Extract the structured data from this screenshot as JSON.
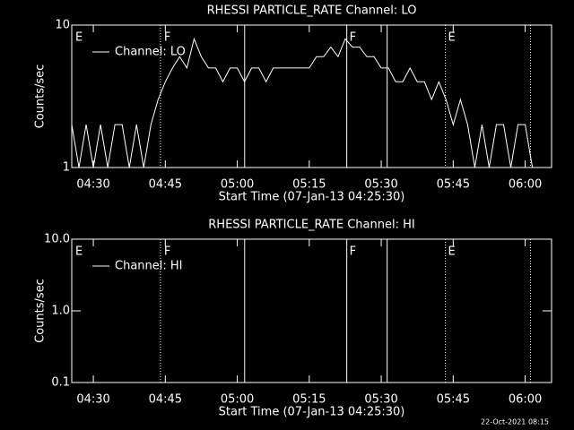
{
  "chart_data": [
    {
      "type": "line",
      "title": "RHESSI PARTICLE_RATE Channel: LO",
      "xlabel": "Start Time (07-Jan-13 04:25:30)",
      "ylabel": "Counts/sec",
      "log_y": true,
      "ylim": [
        1,
        10
      ],
      "yticks": [
        1,
        10
      ],
      "xlim": [
        0,
        6000
      ],
      "xticks": [
        {
          "value": 270,
          "label": "04:30"
        },
        {
          "value": 1170,
          "label": "04:45"
        },
        {
          "value": 2070,
          "label": "05:00"
        },
        {
          "value": 2970,
          "label": "05:15"
        },
        {
          "value": 3870,
          "label": "05:30"
        },
        {
          "value": 4770,
          "label": "05:45"
        },
        {
          "value": 5670,
          "label": "06:00"
        }
      ],
      "x": [
        0,
        90,
        180,
        270,
        360,
        450,
        540,
        630,
        720,
        810,
        900,
        990,
        1080,
        1170,
        1260,
        1350,
        1440,
        1530,
        1620,
        1710,
        1800,
        1890,
        1980,
        2070,
        2160,
        2250,
        2340,
        2430,
        2520,
        2610,
        2700,
        2790,
        2880,
        2970,
        3060,
        3150,
        3240,
        3330,
        3420,
        3510,
        3600,
        3690,
        3780,
        3870,
        3960,
        4050,
        4140,
        4230,
        4320,
        4410,
        4500,
        4590,
        4680,
        4770,
        4860,
        4950,
        5040,
        5130,
        5220,
        5310,
        5400,
        5490,
        5580,
        5670,
        5760
      ],
      "series": [
        {
          "name": "Channel: LO",
          "color": "#ffffff",
          "values": [
            2,
            1,
            2,
            1,
            2,
            1,
            2,
            2,
            1,
            2,
            1,
            2,
            3,
            4,
            5,
            6,
            5,
            8,
            6,
            5,
            5,
            4,
            5,
            5,
            4,
            5,
            5,
            4,
            5,
            5,
            5,
            5,
            5,
            5,
            6,
            6,
            7,
            6,
            8,
            7,
            7,
            6,
            6,
            5,
            5,
            4,
            4,
            5,
            4,
            4,
            3,
            4,
            3,
            2,
            3,
            2,
            1,
            2,
            1,
            2,
            2,
            1,
            2,
            2,
            1
          ]
        }
      ],
      "legend": "upper left",
      "vlines": [
        {
          "x": 1109,
          "style": "dotted"
        },
        {
          "x": 2162,
          "style": "solid"
        },
        {
          "x": 3439,
          "style": "solid"
        },
        {
          "x": 3944,
          "style": "solid"
        },
        {
          "x": 4672,
          "style": "dotted"
        },
        {
          "x": 5736,
          "style": "dotted"
        }
      ],
      "annotations": [
        {
          "text": "E",
          "x": 45
        },
        {
          "text": "F",
          "x": 1154
        },
        {
          "text": "F",
          "x": 3473
        },
        {
          "text": "E",
          "x": 4705
        }
      ]
    },
    {
      "type": "line",
      "title": "RHESSI PARTICLE_RATE Channel: HI",
      "xlabel": "Start Time (07-Jan-13 04:25:30)",
      "ylabel": "Counts/sec",
      "log_y": true,
      "ylim": [
        0.1,
        10
      ],
      "yticks": [
        {
          "value": 0.1,
          "label": "0.1"
        },
        {
          "value": 1,
          "label": "1.0"
        },
        {
          "value": 10,
          "label": "10.0"
        }
      ],
      "xlim": [
        0,
        6000
      ],
      "xticks": [
        {
          "value": 270,
          "label": "04:30"
        },
        {
          "value": 1170,
          "label": "04:45"
        },
        {
          "value": 2070,
          "label": "05:00"
        },
        {
          "value": 2970,
          "label": "05:15"
        },
        {
          "value": 3870,
          "label": "05:30"
        },
        {
          "value": 4770,
          "label": "05:45"
        },
        {
          "value": 5670,
          "label": "06:00"
        }
      ],
      "x": [],
      "series": [
        {
          "name": "Channel: HI",
          "color": "#ffffff",
          "values": []
        }
      ],
      "legend": "upper left",
      "vlines": [
        {
          "x": 1109,
          "style": "dotted"
        },
        {
          "x": 2162,
          "style": "solid"
        },
        {
          "x": 3439,
          "style": "solid"
        },
        {
          "x": 3944,
          "style": "solid"
        },
        {
          "x": 4672,
          "style": "dotted"
        },
        {
          "x": 5736,
          "style": "dotted"
        }
      ],
      "annotations": [
        {
          "text": "E",
          "x": 45
        },
        {
          "text": "F",
          "x": 1154
        },
        {
          "text": "F",
          "x": 3473
        },
        {
          "text": "E",
          "x": 4705
        }
      ]
    }
  ],
  "footer": "22-Oct-2021 08:15"
}
